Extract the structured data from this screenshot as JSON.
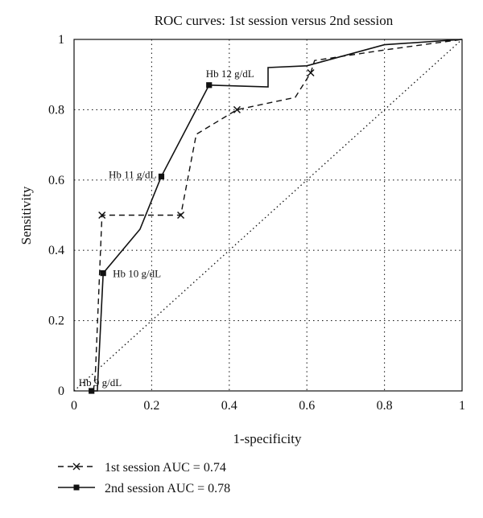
{
  "chart_data": {
    "type": "line",
    "title": "ROC curves: 1st session versus 2nd session",
    "xlabel": "1-specificity",
    "ylabel": "Sensitivity",
    "xlim": [
      0,
      1
    ],
    "ylim": [
      0,
      1
    ],
    "xticks": [
      0,
      0.2,
      0.4,
      0.6,
      0.8,
      1
    ],
    "xtick_labels": [
      "0",
      "0.2",
      "0.4",
      "0.6",
      "0.8",
      "1"
    ],
    "yticks": [
      0,
      0.2,
      0.4,
      0.6,
      0.8,
      1
    ],
    "ytick_labels": [
      "0",
      "0.2",
      "0.4",
      "0.6",
      "0.8",
      "1"
    ],
    "grid": true,
    "legend_position": "bottom-left, below plot",
    "series": [
      {
        "name": "1st session AUC = 0.74",
        "line_style": "dashed",
        "marker": "x",
        "color": "#111111",
        "points": [
          [
            0.05,
            0
          ],
          [
            0.055,
            0.05
          ],
          [
            0.072,
            0.5
          ],
          [
            0.275,
            0.5
          ],
          [
            0.315,
            0.73
          ],
          [
            0.42,
            0.8
          ],
          [
            0.57,
            0.835
          ],
          [
            0.61,
            0.905
          ],
          [
            0.62,
            0.94
          ],
          [
            0.8,
            0.97
          ],
          [
            1,
            1
          ]
        ],
        "marker_points": [
          [
            0.072,
            0.5
          ],
          [
            0.275,
            0.5
          ],
          [
            0.42,
            0.8
          ],
          [
            0.61,
            0.905
          ]
        ]
      },
      {
        "name": "2nd session AUC = 0.78",
        "line_style": "solid",
        "marker": "square",
        "color": "#111111",
        "points": [
          [
            0.045,
            0
          ],
          [
            0.06,
            0
          ],
          [
            0.075,
            0.335
          ],
          [
            0.17,
            0.46
          ],
          [
            0.225,
            0.61
          ],
          [
            0.348,
            0.87
          ],
          [
            0.5,
            0.865
          ],
          [
            0.5,
            0.92
          ],
          [
            0.6,
            0.925
          ],
          [
            0.8,
            0.985
          ],
          [
            1,
            1
          ]
        ],
        "marker_points": [
          [
            0.045,
            0
          ],
          [
            0.075,
            0.335
          ],
          [
            0.225,
            0.61
          ],
          [
            0.348,
            0.87
          ]
        ]
      },
      {
        "line_style": "dotted",
        "color": "#111111",
        "points": [
          [
            0,
            0
          ],
          [
            1,
            1
          ]
        ]
      }
    ],
    "annotations": [
      {
        "text": "Hb 9 g/dL",
        "x": 0.045,
        "y": 0
      },
      {
        "text": "Hb 10 g/dL",
        "x": 0.075,
        "y": 0.335
      },
      {
        "text": "Hb 11 g/dL",
        "x": 0.225,
        "y": 0.61
      },
      {
        "text": "Hb 12 g/dL",
        "x": 0.348,
        "y": 0.87
      }
    ]
  }
}
